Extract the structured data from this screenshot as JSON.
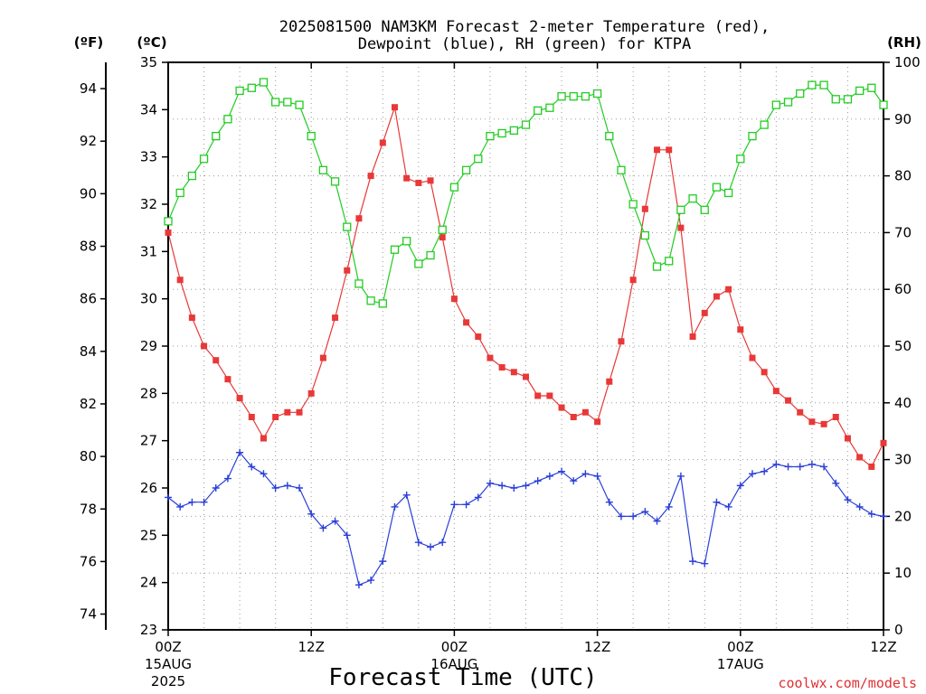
{
  "chart_data": {
    "type": "line",
    "title": "2025081500 NAM3KM Forecast 2-meter Temperature (red),",
    "subtitle": "Dewpoint (blue), RH (green) for KTPA",
    "unit_f": "(ºF)",
    "unit_c": "(ºC)",
    "unit_rh": "(RH)",
    "xlabel": "Forecast Time (UTC)",
    "credit": "coolwx.com/models",
    "x_hours_range": [
      0,
      60
    ],
    "c_range": [
      23,
      35
    ],
    "rh_range": [
      0,
      100
    ],
    "c_ticks": [
      "23",
      "24",
      "25",
      "26",
      "27",
      "28",
      "29",
      "30",
      "31",
      "32",
      "33",
      "34",
      "35"
    ],
    "f_ticks": [
      "74",
      "76",
      "78",
      "80",
      "82",
      "84",
      "86",
      "88",
      "90",
      "92",
      "94"
    ],
    "rh_ticks": [
      "0",
      "10",
      "20",
      "30",
      "40",
      "50",
      "60",
      "70",
      "80",
      "90",
      "100"
    ],
    "x_ticks": [
      {
        "hour": 0,
        "label": "00Z",
        "sub1": "15AUG",
        "sub2": "2025"
      },
      {
        "hour": 12,
        "label": "12Z",
        "sub1": "",
        "sub2": ""
      },
      {
        "hour": 24,
        "label": "00Z",
        "sub1": "16AUG",
        "sub2": ""
      },
      {
        "hour": 36,
        "label": "12Z",
        "sub1": "",
        "sub2": ""
      },
      {
        "hour": 48,
        "label": "00Z",
        "sub1": "17AUG",
        "sub2": ""
      },
      {
        "hour": 60,
        "label": "12Z",
        "sub1": "",
        "sub2": ""
      }
    ],
    "series": [
      {
        "name": "Temperature",
        "color": "#e83838",
        "marker": "square-filled",
        "axis": "c",
        "values": [
          31.4,
          30.4,
          29.6,
          29.0,
          28.7,
          28.3,
          27.9,
          27.5,
          27.05,
          27.5,
          27.6,
          27.6,
          28.0,
          28.75,
          29.6,
          30.6,
          31.7,
          32.6,
          33.3,
          34.05,
          32.55,
          32.45,
          32.5,
          31.3,
          30.0,
          29.5,
          29.2,
          28.75,
          28.55,
          28.45,
          28.35,
          27.95,
          27.95,
          27.7,
          27.5,
          27.6,
          27.4,
          28.25,
          29.1,
          30.4,
          31.9,
          33.15,
          33.15,
          31.5,
          29.2,
          29.7,
          30.05,
          30.2,
          29.35,
          28.75,
          28.45,
          28.05,
          27.85,
          27.6,
          27.4,
          27.35,
          27.5,
          27.05,
          26.65,
          26.45,
          26.95
        ]
      },
      {
        "name": "Dewpoint",
        "color": "#2a3fd8",
        "marker": "plus",
        "axis": "c",
        "values": [
          25.8,
          25.6,
          25.7,
          25.7,
          26.0,
          26.2,
          26.75,
          26.45,
          26.3,
          26.0,
          26.05,
          26.0,
          25.45,
          25.15,
          25.3,
          25.0,
          23.95,
          24.05,
          24.45,
          25.6,
          25.85,
          24.85,
          24.75,
          24.85,
          25.65,
          25.65,
          25.8,
          26.1,
          26.05,
          26.0,
          26.05,
          26.15,
          26.25,
          26.35,
          26.15,
          26.3,
          26.25,
          25.7,
          25.4,
          25.4,
          25.5,
          25.3,
          25.6,
          26.25,
          24.45,
          24.4,
          25.7,
          25.6,
          26.05,
          26.3,
          26.35,
          26.5,
          26.45,
          26.45,
          26.5,
          26.45,
          26.1,
          25.75,
          25.6,
          25.45,
          25.4
        ]
      },
      {
        "name": "RH",
        "color": "#22cc22",
        "marker": "square-open",
        "axis": "rh",
        "values": [
          72,
          77,
          80,
          83,
          87,
          90,
          95,
          95.5,
          96.5,
          93,
          93,
          92.5,
          87,
          81,
          79,
          71,
          61,
          58,
          57.5,
          67,
          68.5,
          64.5,
          66,
          70.5,
          78,
          81,
          83,
          87,
          87.5,
          88,
          89,
          91.5,
          92,
          94,
          94,
          94,
          94.5,
          87,
          81,
          75,
          69.5,
          64,
          65,
          74,
          76,
          74,
          78,
          77,
          83,
          87,
          89,
          92.5,
          93,
          94.5,
          96,
          96,
          93.5,
          93.5,
          95,
          95.5,
          92.5
        ]
      }
    ]
  }
}
